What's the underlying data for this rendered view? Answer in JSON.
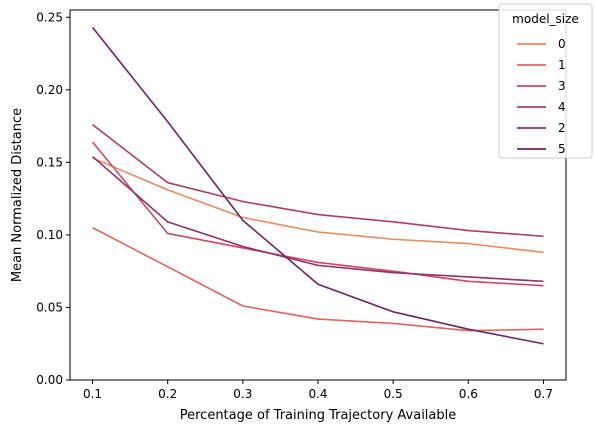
{
  "chart_data": {
    "type": "line",
    "title": "",
    "xlabel": "Percentage of Training Trajectory Available",
    "ylabel": "Mean Normalized Distance",
    "x": [
      0.1,
      0.2,
      0.3,
      0.4,
      0.5,
      0.6,
      0.7
    ],
    "xlim": [
      0.07,
      0.73
    ],
    "ylim": [
      0.0,
      0.255
    ],
    "xticks": [
      "0.1",
      "0.2",
      "0.3",
      "0.4",
      "0.5",
      "0.6",
      "0.7"
    ],
    "yticks": [
      "0.00",
      "0.05",
      "0.10",
      "0.15",
      "0.20",
      "0.25"
    ],
    "grid": false,
    "legend": {
      "title": "model_size",
      "placement": "top-right"
    },
    "series": [
      {
        "name": "0",
        "color": "#ea8a5e",
        "values": [
          0.153,
          0.131,
          0.112,
          0.102,
          0.097,
          0.094,
          0.088
        ]
      },
      {
        "name": "1",
        "color": "#e0655a",
        "values": [
          0.105,
          0.078,
          0.051,
          0.042,
          0.039,
          0.034,
          0.035
        ]
      },
      {
        "name": "3",
        "color": "#cf4861",
        "values": [
          0.164,
          0.101,
          0.091,
          0.081,
          0.075,
          0.068,
          0.065
        ]
      },
      {
        "name": "4",
        "color": "#b03c6c",
        "values": [
          0.176,
          0.136,
          0.123,
          0.114,
          0.109,
          0.103,
          0.099
        ]
      },
      {
        "name": "2",
        "color": "#932f70",
        "values": [
          0.154,
          0.109,
          0.092,
          0.079,
          0.074,
          0.071,
          0.068
        ]
      },
      {
        "name": "5",
        "color": "#6e2565",
        "values": [
          0.243,
          0.178,
          0.11,
          0.066,
          0.047,
          0.035,
          0.025
        ]
      }
    ]
  }
}
